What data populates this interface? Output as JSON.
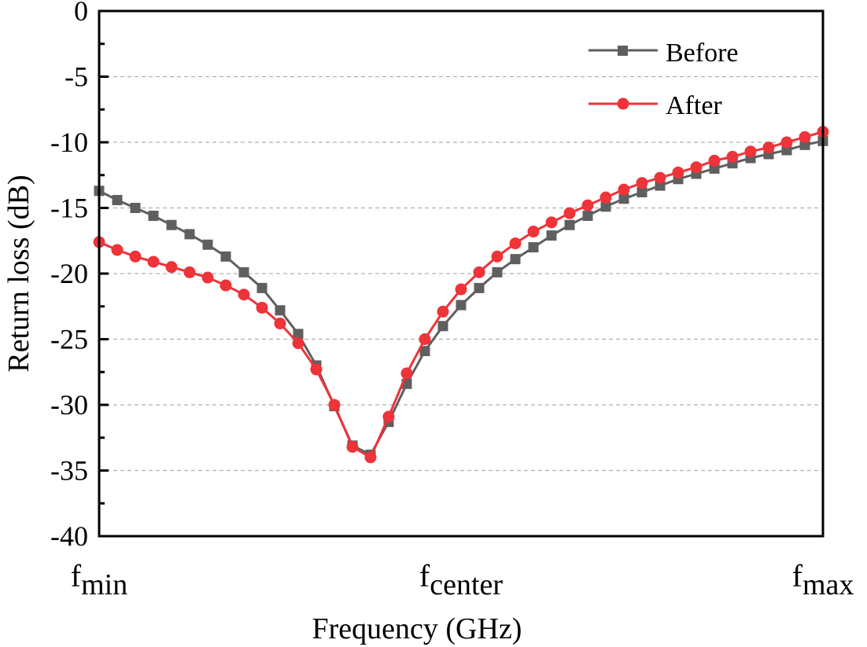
{
  "chart_data": {
    "type": "line",
    "title": "",
    "xlabel": "Frequency (GHz)",
    "ylabel": "Return loss (dB)",
    "ylim": [
      -40,
      0
    ],
    "yticks": [
      "0",
      "-5",
      "-10",
      "-15",
      "-20",
      "-25",
      "-30",
      "-35",
      "-40"
    ],
    "ytick_values": [
      0,
      -5,
      -10,
      -15,
      -20,
      -25,
      -30,
      -35,
      -40
    ],
    "xticks": [
      {
        "main": "f",
        "sub": "min",
        "pos": 0
      },
      {
        "main": "f",
        "sub": "center",
        "pos": 0.5
      },
      {
        "main": "f",
        "sub": "max",
        "pos": 1
      }
    ],
    "grid": "horizontal dashed",
    "legend_position": "top-right",
    "colors": {
      "before": "#5f5f5f",
      "after": "#ee3339",
      "grid": "#b0b0b0",
      "axis": "#000000"
    },
    "x_index": [
      0,
      1,
      2,
      3,
      4,
      5,
      6,
      7,
      8,
      9,
      10,
      11,
      12,
      13,
      14,
      15,
      16,
      17,
      18,
      19,
      20,
      21,
      22,
      23,
      24,
      25,
      26,
      27,
      28,
      29,
      30,
      31,
      32,
      33,
      34,
      35,
      36,
      37,
      38,
      39,
      40
    ],
    "series": [
      {
        "name": "Before",
        "marker": "square",
        "values": [
          -13.7,
          -14.4,
          -15.0,
          -15.6,
          -16.3,
          -17.0,
          -17.8,
          -18.7,
          -19.9,
          -21.1,
          -22.8,
          -24.6,
          -27.0,
          -30.1,
          -33.1,
          -33.8,
          -31.3,
          -28.4,
          -25.9,
          -24.0,
          -22.4,
          -21.1,
          -19.9,
          -18.9,
          -18.0,
          -17.1,
          -16.3,
          -15.6,
          -14.9,
          -14.3,
          -13.8,
          -13.3,
          -12.8,
          -12.4,
          -12.0,
          -11.6,
          -11.2,
          -10.9,
          -10.6,
          -10.2,
          -9.9
        ]
      },
      {
        "name": "After",
        "marker": "circle",
        "values": [
          -17.6,
          -18.2,
          -18.7,
          -19.1,
          -19.5,
          -19.9,
          -20.3,
          -20.9,
          -21.6,
          -22.6,
          -23.8,
          -25.3,
          -27.3,
          -30.0,
          -33.2,
          -34.0,
          -30.9,
          -27.6,
          -25.0,
          -22.9,
          -21.2,
          -19.9,
          -18.7,
          -17.7,
          -16.8,
          -16.1,
          -15.4,
          -14.8,
          -14.2,
          -13.6,
          -13.1,
          -12.7,
          -12.3,
          -11.9,
          -11.4,
          -11.1,
          -10.7,
          -10.4,
          -10.0,
          -9.6,
          -9.2
        ]
      }
    ]
  }
}
